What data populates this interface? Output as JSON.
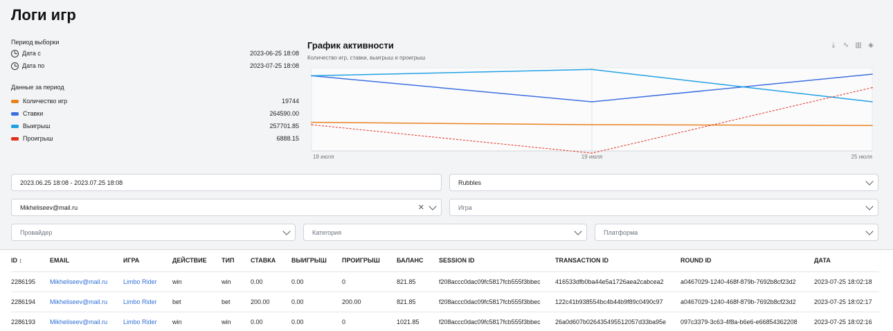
{
  "page": {
    "title": "Логи игр"
  },
  "period": {
    "label": "Период выборки",
    "from_label": "Дата с",
    "from_value": "2023-06-25 18:08",
    "to_label": "Дата по",
    "to_value": "2023-07-25 18:08"
  },
  "stats": {
    "label": "Данные за период",
    "items": [
      {
        "label": "Количество игр",
        "value": "19744",
        "color": "#e8821e"
      },
      {
        "label": "Ставки",
        "value": "264590.00",
        "color": "#3b6fe0"
      },
      {
        "label": "Выигрыш",
        "value": "257701.85",
        "color": "#1fa0e4"
      },
      {
        "label": "Проигрыш",
        "value": "6888.15",
        "color": "#e0301e"
      }
    ]
  },
  "chart_data": {
    "type": "line",
    "title": "График активности",
    "subtitle": "Количество игр, ставки, выигрыш и проигрыш",
    "x": [
      "18 июля",
      "19 июля",
      "25 июля"
    ],
    "series": [
      {
        "name": "Количество игр",
        "color": "#e8821e",
        "values": [
          0.31,
          0.28,
          0.27
        ],
        "dash": false
      },
      {
        "name": "Ставки",
        "color": "#3b6fe0",
        "values": [
          0.9,
          0.57,
          0.92
        ],
        "dash": false
      },
      {
        "name": "Выигрыш",
        "color": "#1fa0e4",
        "values": [
          0.9,
          0.98,
          0.57
        ],
        "dash": false
      },
      {
        "name": "Проигрыш",
        "color": "#e0301e",
        "values": [
          0.28,
          -0.08,
          0.75
        ],
        "dash": true
      }
    ]
  },
  "filters": {
    "daterange": "2023.06.25 18:08 - 2023.07.25 18:08",
    "currency": "Rubbles",
    "email": "Mikheliseev@mail.ru",
    "game_placeholder": "Игра",
    "provider_placeholder": "Провайдер",
    "category_placeholder": "Категория",
    "platform_placeholder": "Платформа"
  },
  "table": {
    "headers": [
      "ID",
      "EMAIL",
      "ИГРА",
      "ДЕЙСТВИЕ",
      "ТИП",
      "СТАВКА",
      "ВЫИГРЫШ",
      "ПРОИГРЫШ",
      "БАЛАНС",
      "SESSION ID",
      "TRANSACTION ID",
      "ROUND ID",
      "ДАТА"
    ],
    "sort_icon": "↕",
    "rows": [
      [
        "2286195",
        "Mikheliseev@mail.ru",
        "Limbo Rider",
        "win",
        "win",
        "0.00",
        "0.00",
        "0",
        "821.85",
        "f208accc0dac09fc5817fcb555f3bbec",
        "416533dfb0ba44e5a1726aea2cabcea2",
        "a0467029-1240-468f-879b-7692b8cf23d2",
        "2023-07-25 18:02:18"
      ],
      [
        "2286194",
        "Mikheliseev@mail.ru",
        "Limbo Rider",
        "bet",
        "bet",
        "200.00",
        "0.00",
        "200.00",
        "821.85",
        "f208accc0dac09fc5817fcb555f3bbec",
        "122c41b938554bc4b44b9f89c0490c97",
        "a0467029-1240-468f-879b-7692b8cf23d2",
        "2023-07-25 18:02:17"
      ],
      [
        "2286193",
        "Mikheliseev@mail.ru",
        "Limbo Rider",
        "win",
        "win",
        "0.00",
        "0.00",
        "0",
        "1021.85",
        "f208accc0dac09fc5817fcb555f3bbec",
        "26a0d607b026435495512057d33ba95e",
        "097c3379-3c63-4f8a-b6e6-e66854362208",
        "2023-07-25 18:02:16"
      ]
    ]
  }
}
